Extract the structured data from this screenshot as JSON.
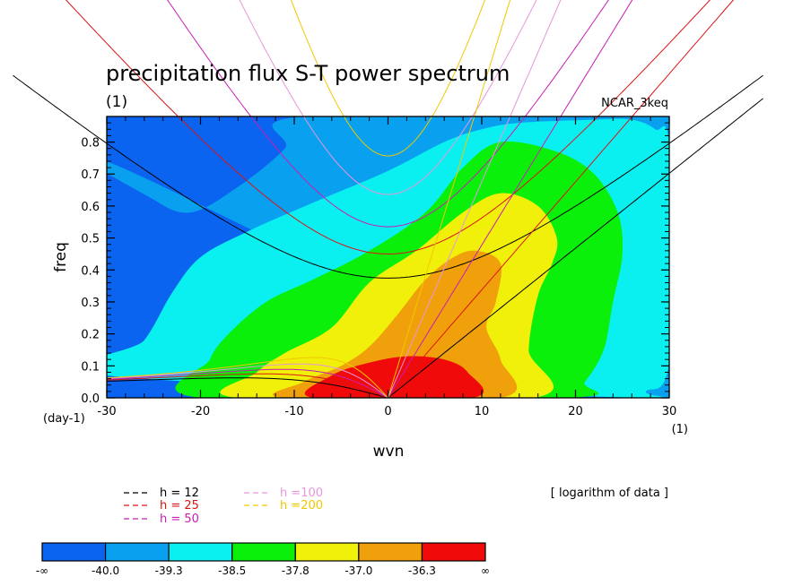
{
  "chart_data": {
    "type": "heatmap",
    "title": "precipitation flux S-T power spectrum",
    "subtitle_left": "(1)",
    "subtitle_right": "NCAR_3keq",
    "xlabel": "wvn",
    "ylabel": "freq",
    "x_unit": "(1)",
    "y_unit": "(day-1)",
    "xlim": [
      -30,
      30
    ],
    "ylim": [
      0,
      0.88
    ],
    "x_ticks": [
      -30,
      -20,
      -10,
      0,
      10,
      20,
      30
    ],
    "x_tick_labels": [
      "-30",
      "-20",
      "-10",
      "0",
      "10",
      "20",
      "30"
    ],
    "y_ticks": [
      0.0,
      0.1,
      0.2,
      0.3,
      0.4,
      0.5,
      0.6,
      0.7,
      0.8
    ],
    "y_tick_labels": [
      "0.0",
      "0.1",
      "0.2",
      "0.3",
      "0.4",
      "0.5",
      "0.6",
      "0.7",
      "0.8"
    ],
    "shade_note": "[ logarithm of data ]",
    "colorbar": {
      "colors": [
        "#0a64f0",
        "#0aa0f0",
        "#0af0f0",
        "#0af00a",
        "#f0f00a",
        "#f0a00a",
        "#f00a0a"
      ],
      "labels": [
        "-∞",
        "-40.0",
        "-39.3",
        "-38.5",
        "-37.8",
        "-37.0",
        "-36.3",
        "∞"
      ]
    },
    "dispersion_legend": [
      {
        "label": "h = 12",
        "color": "#000000",
        "h": 12
      },
      {
        "label": "h = 25",
        "color": "#dc1414",
        "h": 25
      },
      {
        "label": "h = 50",
        "color": "#c81eb4",
        "h": 50
      },
      {
        "label": "h =100",
        "color": "#e696dc",
        "h": 100
      },
      {
        "label": "h =200",
        "color": "#f0c800",
        "h": 200
      }
    ],
    "contour_bands": [
      {
        "level": 1,
        "pts": [
          [
            -30,
            0.74
          ],
          [
            -25,
            0.62
          ],
          [
            -21,
            0.58
          ],
          [
            -16,
            0.66
          ],
          [
            -11,
            0.78
          ],
          [
            -9,
            0.88
          ],
          [
            30,
            0.88
          ],
          [
            30,
            0
          ]
        ]
      },
      {
        "level": 2,
        "pts": [
          [
            -30,
            0.07
          ],
          [
            -26,
            0.18
          ],
          [
            -23,
            0.33
          ],
          [
            -20,
            0.44
          ],
          [
            -15,
            0.52
          ],
          [
            -8,
            0.61
          ],
          [
            0,
            0.71
          ],
          [
            6,
            0.8
          ],
          [
            10,
            0.84
          ],
          [
            14,
            0.86
          ],
          [
            22,
            0.87
          ],
          [
            26,
            0.87
          ],
          [
            28.5,
            0.84
          ],
          [
            30,
            0.78
          ],
          [
            30,
            0.12
          ],
          [
            27.5,
            0.02
          ],
          [
            26.5,
            0
          ]
        ]
      },
      {
        "level": 3,
        "pts": [
          [
            -20,
            0
          ],
          [
            -19,
            0.12
          ],
          [
            -17,
            0.2
          ],
          [
            -13,
            0.3
          ],
          [
            -8,
            0.37
          ],
          [
            -2,
            0.46
          ],
          [
            4,
            0.58
          ],
          [
            8,
            0.72
          ],
          [
            12,
            0.8
          ],
          [
            18,
            0.77
          ],
          [
            22,
            0.7
          ],
          [
            24.5,
            0.58
          ],
          [
            25,
            0.45
          ],
          [
            24,
            0.3
          ],
          [
            23,
            0.15
          ],
          [
            21,
            0.05
          ],
          [
            19,
            0
          ]
        ]
      },
      {
        "level": 4,
        "pts": [
          [
            -16,
            0
          ],
          [
            -14,
            0.08
          ],
          [
            -11,
            0.14
          ],
          [
            -6,
            0.22
          ],
          [
            -2,
            0.36
          ],
          [
            3,
            0.46
          ],
          [
            8,
            0.58
          ],
          [
            12,
            0.64
          ],
          [
            16,
            0.6
          ],
          [
            18,
            0.5
          ],
          [
            17.5,
            0.42
          ],
          [
            16,
            0.32
          ],
          [
            15,
            0.15
          ],
          [
            15.5,
            0
          ]
        ]
      },
      {
        "level": 5,
        "pts": [
          [
            -11,
            0
          ],
          [
            -9,
            0.05
          ],
          [
            -5,
            0.1
          ],
          [
            -2,
            0.16
          ],
          [
            1,
            0.26
          ],
          [
            4,
            0.37
          ],
          [
            7,
            0.44
          ],
          [
            9.5,
            0.46
          ],
          [
            12,
            0.42
          ],
          [
            11.5,
            0.3
          ],
          [
            10.5,
            0.22
          ],
          [
            12,
            0.12
          ],
          [
            12,
            0
          ]
        ]
      },
      {
        "level": 6,
        "pts": [
          [
            -8,
            0
          ],
          [
            -6,
            0.07
          ],
          [
            -2,
            0.11
          ],
          [
            2,
            0.13
          ],
          [
            6,
            0.12
          ],
          [
            8.5,
            0.08
          ],
          [
            9,
            0
          ]
        ]
      }
    ]
  }
}
